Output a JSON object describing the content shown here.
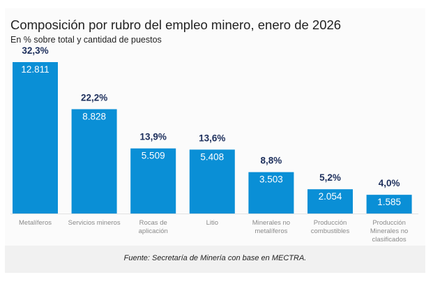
{
  "chart_data": {
    "type": "bar",
    "title": "Composición por rubro del empleo minero, enero de 2026",
    "subtitle": "En % sobre total y cantidad de puestos",
    "xlabel": "",
    "ylabel": "",
    "categories": [
      [
        "Metalíferos"
      ],
      [
        "Servicios mineros"
      ],
      [
        "Rocas de",
        "aplicación"
      ],
      [
        "Litio"
      ],
      [
        "Minerales no",
        "metalíferos"
      ],
      [
        "Producción",
        "combustibles"
      ],
      [
        "Producción",
        "Minerales no",
        "clasificados"
      ]
    ],
    "values": [
      12811,
      8828,
      5509,
      5408,
      3503,
      2054,
      1585
    ],
    "value_labels": [
      "12.811",
      "8.828",
      "5.509",
      "5.408",
      "3.503",
      "2.054",
      "1.585"
    ],
    "percent_labels": [
      "32,3%",
      "22,2%",
      "13,9%",
      "13,6%",
      "8,8%",
      "5,2%",
      "4,0%"
    ],
    "ylim": [
      0,
      12811
    ],
    "grid": false,
    "legend": "none",
    "bar_color": "#0a8fd6",
    "percent_color": "#1d2f5c"
  },
  "source": "Fuente: Secretaría de Minería con base en MECTRA."
}
